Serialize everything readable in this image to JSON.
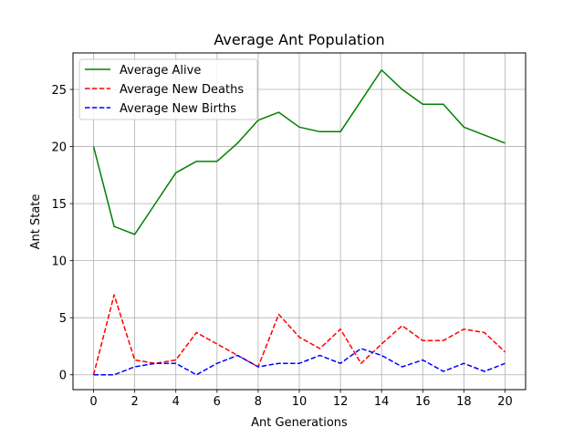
{
  "chart_data": {
    "type": "line",
    "title": "Average Ant Population",
    "xlabel": "Ant Generations",
    "ylabel": "Ant State",
    "x": [
      0,
      1,
      2,
      3,
      4,
      5,
      6,
      7,
      8,
      9,
      10,
      11,
      12,
      13,
      14,
      15,
      16,
      17,
      18,
      19,
      20
    ],
    "xlim": [
      -1,
      21
    ],
    "ylim": [
      -1.3,
      28.2
    ],
    "xticks": [
      0,
      2,
      4,
      6,
      8,
      10,
      12,
      14,
      16,
      18,
      20
    ],
    "yticks": [
      0,
      5,
      10,
      15,
      20,
      25
    ],
    "grid": true,
    "legend_position": "top-left",
    "series": [
      {
        "name": "Average Alive",
        "color": "#008000",
        "style": "solid",
        "values": [
          20.0,
          13.0,
          12.3,
          15.0,
          17.7,
          18.7,
          18.7,
          20.3,
          22.3,
          23.0,
          21.7,
          21.3,
          21.3,
          24.0,
          26.7,
          25.0,
          23.7,
          23.7,
          21.7,
          21.0,
          20.3
        ]
      },
      {
        "name": "Average New Deaths",
        "color": "#ff0000",
        "style": "dashed",
        "values": [
          0.0,
          7.0,
          1.3,
          1.0,
          1.3,
          3.7,
          2.7,
          1.7,
          0.7,
          5.3,
          3.3,
          2.3,
          4.0,
          1.0,
          2.7,
          4.3,
          3.0,
          3.0,
          4.0,
          3.7,
          2.0
        ]
      },
      {
        "name": "Average New Births",
        "color": "#0000ff",
        "style": "dashed",
        "values": [
          0.0,
          0.0,
          0.7,
          1.0,
          1.0,
          0.0,
          1.0,
          1.7,
          0.7,
          1.0,
          1.0,
          1.7,
          1.0,
          2.3,
          1.7,
          0.7,
          1.3,
          0.3,
          1.0,
          0.3,
          1.0
        ]
      }
    ]
  }
}
